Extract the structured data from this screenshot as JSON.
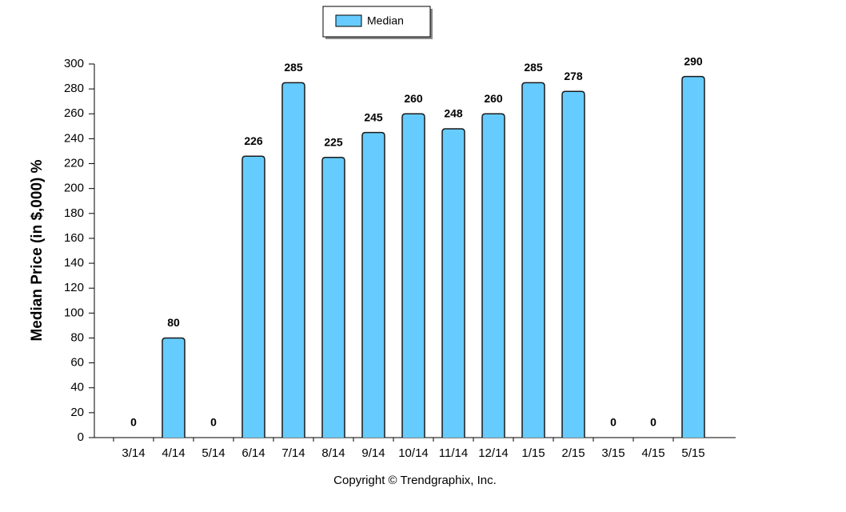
{
  "chart_data": {
    "type": "bar",
    "y_label": "Median Price (in $,000) %",
    "categories": [
      "3/14",
      "4/14",
      "5/14",
      "6/14",
      "7/14",
      "8/14",
      "9/14",
      "10/14",
      "11/14",
      "12/14",
      "1/15",
      "2/15",
      "3/15",
      "4/15",
      "5/15"
    ],
    "series": [
      {
        "name": "Median",
        "color": "#66ccff",
        "values": [
          0,
          80,
          0,
          226,
          285,
          225,
          245,
          260,
          248,
          260,
          285,
          278,
          0,
          0,
          290
        ]
      }
    ],
    "ylim": [
      0,
      300
    ],
    "yticks": [
      0,
      20,
      40,
      60,
      80,
      100,
      120,
      140,
      160,
      180,
      200,
      220,
      240,
      260,
      280,
      300
    ],
    "legend": "top",
    "copyright": "Copyright © Trendgraphix, Inc."
  }
}
